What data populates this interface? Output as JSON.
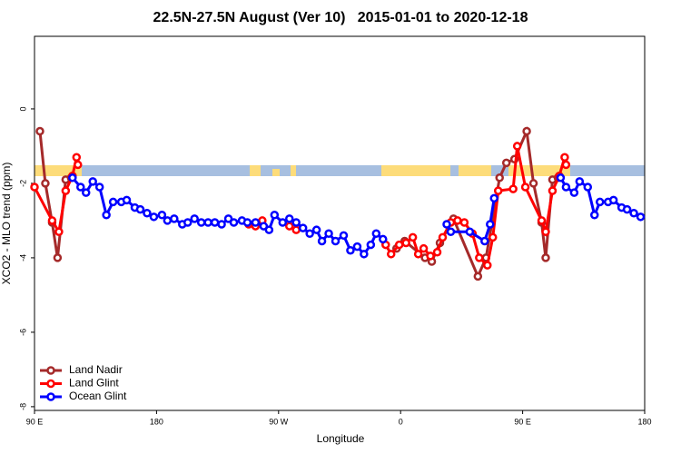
{
  "chart_data": {
    "type": "line",
    "title": "22.5N-27.5N August (Ver 10)   2015-01-01 to 2020-12-18",
    "x_label": "Longitude",
    "y_label": "XCO2 - MLO trend (ppm)",
    "xlim": [
      90,
      540
    ],
    "ylim": [
      -8.1,
      1.95
    ],
    "xticks": [
      {
        "value": 90,
        "label": "90 E"
      },
      180,
      {
        "value": 270,
        "label": "90 W"
      },
      {
        "value": 360,
        "label": "0"
      },
      {
        "value": 450,
        "label": "90 E"
      },
      {
        "value": 540,
        "label": "180"
      }
    ],
    "yticks": [
      0,
      -2,
      -4,
      -6,
      -8
    ],
    "legend": "bottom-left",
    "series": [
      {
        "name": "Land Nadir",
        "color": "#a52a2a",
        "x": [
          94,
          98,
          103,
          107,
          113,
          117,
          200,
          357,
          363,
          378,
          383,
          389,
          399,
          417,
          423,
          433,
          438,
          444,
          453,
          458,
          464,
          467,
          472,
          476
        ],
        "values": [
          -0.6,
          -2.0,
          -3.05,
          -4.0,
          -1.9,
          -1.85,
          null,
          -3.75,
          -3.55,
          -4.0,
          -4.1,
          -3.6,
          -2.95,
          -4.5,
          -4.0,
          -1.85,
          -1.45,
          -1.35,
          -0.6,
          -2.0,
          -3.05,
          -4.0,
          -1.9,
          -1.85
        ]
      },
      {
        "name": "Land Glint",
        "color": "#ff0000",
        "x": [
          90,
          103,
          108,
          113,
          118,
          121,
          122,
          200,
          248,
          253,
          258,
          268,
          278,
          283,
          320,
          349,
          353,
          359,
          364,
          369,
          373,
          377,
          382,
          387,
          391,
          397,
          402,
          407,
          413,
          418,
          424,
          428,
          432,
          443,
          446,
          452,
          464,
          467,
          472,
          477,
          481,
          482
        ],
        "values": [
          -2.1,
          -3.0,
          -3.3,
          -2.2,
          -1.8,
          -1.3,
          -1.5,
          null,
          -3.1,
          -3.15,
          -3.0,
          null,
          -3.15,
          -3.25,
          null,
          -3.65,
          -3.9,
          -3.65,
          -3.6,
          -3.45,
          -3.9,
          -3.75,
          -3.95,
          -3.85,
          -3.45,
          -3.05,
          -3.0,
          -3.05,
          -3.35,
          -4.0,
          -4.2,
          -3.45,
          -2.2,
          -2.15,
          -1.0,
          -2.1,
          -3.0,
          -3.3,
          -2.2,
          -1.8,
          -1.3,
          -1.5
        ]
      },
      {
        "name": "Ocean Glint",
        "color": "#0000ff",
        "x": [
          118,
          124,
          128,
          133,
          138,
          143,
          148,
          154,
          158,
          164,
          168,
          173,
          178,
          184,
          188,
          193,
          199,
          203,
          208,
          213,
          218,
          223,
          228,
          233,
          237,
          243,
          247,
          253,
          259,
          263,
          267,
          273,
          278,
          283,
          288,
          293,
          298,
          302,
          307,
          312,
          318,
          323,
          328,
          333,
          338,
          342,
          347,
          370,
          394,
          397,
          411,
          422,
          426,
          429,
          450,
          478,
          482,
          488,
          492,
          498,
          503,
          507,
          513,
          517,
          523,
          527,
          532,
          537
        ],
        "values": [
          -1.85,
          -2.1,
          -2.25,
          -1.95,
          -2.1,
          -2.85,
          -2.5,
          -2.5,
          -2.45,
          -2.65,
          -2.7,
          -2.8,
          -2.9,
          -2.85,
          -3.0,
          -2.95,
          -3.1,
          -3.05,
          -2.95,
          -3.05,
          -3.05,
          -3.05,
          -3.1,
          -2.95,
          -3.05,
          -3.0,
          -3.05,
          -3.05,
          -3.15,
          -3.25,
          -2.85,
          -3.05,
          -2.95,
          -3.05,
          -3.2,
          -3.35,
          -3.25,
          -3.55,
          -3.35,
          -3.55,
          -3.4,
          -3.8,
          -3.7,
          -3.9,
          -3.65,
          -3.35,
          -3.5,
          null,
          -3.1,
          -3.3,
          -3.3,
          -3.55,
          -3.1,
          -2.4,
          null,
          -1.85,
          -2.1,
          -2.25,
          -1.95,
          -2.1,
          -2.85,
          -2.5,
          -2.5,
          -2.45,
          -2.65,
          -2.7,
          -2.8,
          -2.9
        ]
      }
    ]
  }
}
